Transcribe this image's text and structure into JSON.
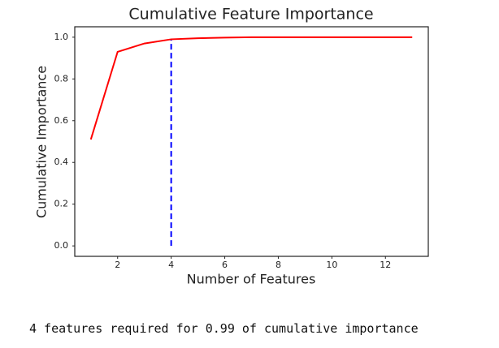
{
  "chart_data": {
    "type": "line",
    "title": "Cumulative Feature Importance",
    "x_label": "Number of Features",
    "y_label": "Cumulative Importance",
    "x": [
      1,
      2,
      3,
      4,
      5,
      6,
      7,
      8,
      9,
      10,
      11,
      12,
      13
    ],
    "series": [
      {
        "name": "cumulative importance",
        "color": "#ff0000",
        "values": [
          0.51,
          0.93,
          0.97,
          0.99,
          0.995,
          0.998,
          1,
          1,
          1,
          1,
          1,
          1,
          1
        ]
      }
    ],
    "vlines": [
      {
        "x": 4,
        "ymin": 0,
        "ymax": 0.99,
        "color": "#0000ff",
        "linestyle": "dashed"
      }
    ],
    "xlim": [
      0.4,
      13.6
    ],
    "ylim": [
      -0.05,
      1.05
    ],
    "xticks": [
      2,
      4,
      6,
      8,
      10,
      12
    ],
    "yticks": [
      {
        "value": 0,
        "label": "0.0"
      },
      0.2,
      0.4,
      0.6,
      0.8,
      {
        "value": 1,
        "label": "1.0"
      }
    ],
    "grid": false
  },
  "output_text": "4 features required for 0.99 of cumulative importance"
}
